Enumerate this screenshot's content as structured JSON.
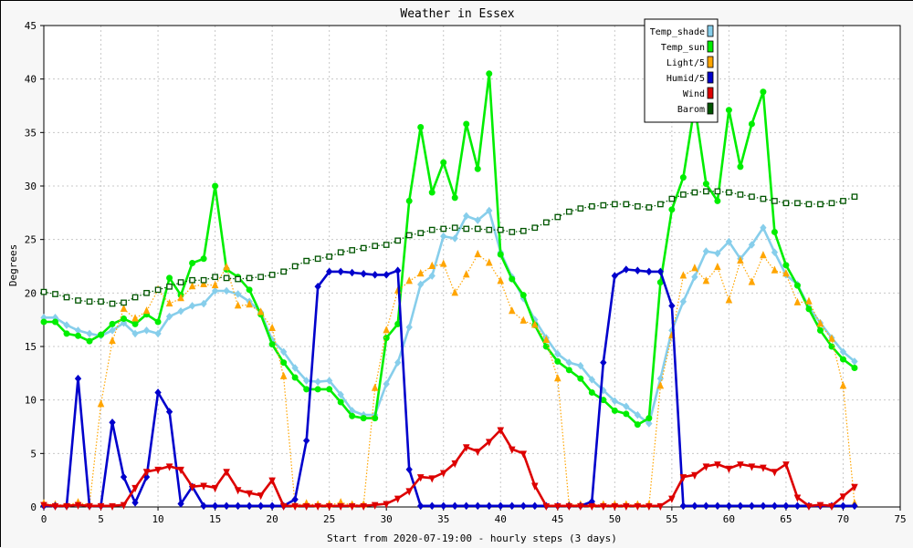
{
  "chart_data": {
    "type": "line",
    "title": "Weather in Essex",
    "xlabel": "Start from 2020-07-19:00 - hourly steps (3 days)",
    "ylabel": "Degrees",
    "xlim": [
      0,
      75
    ],
    "ylim": [
      0,
      45
    ],
    "xticks": [
      0,
      5,
      10,
      15,
      20,
      25,
      30,
      35,
      40,
      45,
      50,
      55,
      60,
      65,
      70,
      75
    ],
    "yticks": [
      0,
      5,
      10,
      15,
      20,
      25,
      30,
      35,
      40,
      45
    ],
    "grid": true,
    "legend_position": "top-right",
    "series": [
      {
        "name": "Temp_shade",
        "color": "#87ceeb",
        "marker": "diamond",
        "style": "solid",
        "values": [
          17.7,
          17.7,
          17.0,
          16.5,
          16.2,
          16.0,
          16.5,
          17.2,
          16.2,
          16.5,
          16.2,
          17.8,
          18.3,
          18.8,
          19.0,
          20.2,
          20.2,
          19.9,
          19.2,
          18.2,
          15.6,
          14.5,
          13.0,
          11.8,
          11.7,
          11.8,
          10.5,
          9.0,
          8.6,
          8.6,
          11.5,
          13.5,
          16.8,
          20.8,
          21.6,
          25.3,
          25.1,
          27.2,
          26.8,
          27.7,
          23.8,
          21.5,
          19.5,
          17.5,
          15.8,
          14.3,
          13.5,
          13.2,
          11.9,
          10.9,
          9.9,
          9.4,
          8.6,
          7.8,
          12.0,
          16.5,
          19.2,
          21.5,
          23.9,
          23.7,
          24.8,
          23.2,
          24.5,
          26.1,
          23.8,
          21.7,
          20.8,
          18.7,
          17.2,
          15.8,
          14.5,
          13.6
        ]
      },
      {
        "name": "Temp_sun",
        "color": "#00ee00",
        "marker": "circle",
        "style": "solid",
        "values": [
          17.3,
          17.3,
          16.2,
          16.0,
          15.5,
          16.1,
          17.1,
          17.6,
          17.1,
          18.0,
          17.3,
          21.4,
          19.8,
          22.8,
          23.2,
          30.0,
          22.2,
          21.5,
          20.3,
          18.0,
          15.2,
          13.5,
          12.1,
          11.0,
          11.0,
          11.0,
          9.8,
          8.5,
          8.3,
          8.3,
          15.8,
          17.1,
          28.6,
          35.5,
          29.4,
          32.2,
          28.9,
          35.8,
          31.6,
          40.5,
          23.6,
          21.3,
          19.8,
          17.0,
          15.0,
          13.6,
          12.8,
          12.0,
          10.7,
          10.0,
          9.0,
          8.7,
          7.7,
          8.3,
          21.0,
          27.8,
          30.8,
          37.5,
          30.2,
          28.6,
          37.1,
          31.8,
          35.8,
          38.8,
          25.7,
          22.6,
          20.7,
          18.5,
          16.5,
          15.0,
          13.8,
          13.0
        ]
      },
      {
        "name": "Light/5",
        "color": "#ffa500",
        "marker": "triangle",
        "style": "dotted",
        "values": [
          0.3,
          0.2,
          0.2,
          0.4,
          0.2,
          9.6,
          15.5,
          18.5,
          17.6,
          18.3,
          20.3,
          19.0,
          19.5,
          20.6,
          20.8,
          20.7,
          22.4,
          18.8,
          18.9,
          18.2,
          16.7,
          12.2,
          0.2,
          0.3,
          0.2,
          0.2,
          0.4,
          0.2,
          0.2,
          11.1,
          16.5,
          20.2,
          21.1,
          21.8,
          22.5,
          22.7,
          20.0,
          21.7,
          23.6,
          22.8,
          21.1,
          18.3,
          17.4,
          17.0,
          15.6,
          12.0,
          0.2,
          0.2,
          0.2,
          0.2,
          0.2,
          0.2,
          0.2,
          0.2,
          11.3,
          16.0,
          21.6,
          22.3,
          21.1,
          22.4,
          19.3,
          23.0,
          21.0,
          23.5,
          22.1,
          21.8,
          19.1,
          19.2,
          17.1,
          15.7,
          11.3,
          0.3
        ]
      },
      {
        "name": "Humid/5",
        "color": "#0000cc",
        "marker": "diamond",
        "style": "solid",
        "values": [
          0.1,
          0.1,
          0.1,
          12.0,
          0.1,
          0.1,
          7.9,
          2.8,
          0.4,
          2.8,
          10.7,
          8.9,
          0.3,
          1.9,
          0.1,
          0.1,
          0.1,
          0.1,
          0.1,
          0.1,
          0.1,
          0.1,
          0.7,
          6.2,
          20.6,
          22.0,
          22.0,
          21.9,
          21.8,
          21.7,
          21.7,
          22.1,
          3.5,
          0.1,
          0.1,
          0.1,
          0.1,
          0.1,
          0.1,
          0.1,
          0.1,
          0.1,
          0.1,
          0.1,
          0.1,
          0.1,
          0.1,
          0.1,
          0.5,
          13.5,
          21.6,
          22.2,
          22.1,
          22.0,
          22.0,
          18.8,
          0.1,
          0.1,
          0.1,
          0.1,
          0.1,
          0.1,
          0.1,
          0.1,
          0.1,
          0.1,
          0.1,
          0.1,
          0.1,
          0.1,
          0.1,
          0.1
        ]
      },
      {
        "name": "Wind",
        "color": "#dd0000",
        "marker": "triangle-down",
        "style": "solid",
        "values": [
          0.2,
          0.1,
          0.1,
          0.2,
          0.1,
          0.1,
          0.1,
          0.2,
          1.8,
          3.3,
          3.5,
          3.8,
          3.5,
          1.9,
          2.0,
          1.8,
          3.3,
          1.6,
          1.3,
          1.1,
          2.5,
          0.1,
          0.1,
          0.1,
          0.1,
          0.1,
          0.1,
          0.1,
          0.1,
          0.2,
          0.3,
          0.8,
          1.5,
          2.8,
          2.7,
          3.2,
          4.1,
          5.6,
          5.2,
          6.1,
          7.2,
          5.4,
          5.0,
          2.0,
          0.1,
          0.1,
          0.1,
          0.1,
          0.1,
          0.1,
          0.1,
          0.1,
          0.1,
          0.1,
          0.1,
          0.8,
          2.8,
          3.0,
          3.8,
          4.0,
          3.6,
          4.0,
          3.8,
          3.7,
          3.3,
          4.0,
          0.9,
          0.1,
          0.2,
          0.1,
          1.0,
          1.9
        ]
      },
      {
        "name": "Barom",
        "color": "#005500",
        "marker": "square",
        "style": "dotted",
        "values": [
          20.1,
          19.9,
          19.6,
          19.3,
          19.2,
          19.2,
          19.0,
          19.1,
          19.6,
          20.0,
          20.3,
          20.6,
          21.0,
          21.2,
          21.2,
          21.5,
          21.4,
          21.3,
          21.4,
          21.5,
          21.7,
          22.0,
          22.5,
          23.0,
          23.2,
          23.4,
          23.8,
          24.0,
          24.2,
          24.4,
          24.5,
          24.9,
          25.4,
          25.6,
          25.9,
          26.0,
          26.1,
          26.0,
          26.0,
          25.9,
          25.9,
          25.7,
          25.8,
          26.1,
          26.6,
          27.1,
          27.6,
          27.9,
          28.1,
          28.2,
          28.3,
          28.3,
          28.1,
          28.0,
          28.3,
          28.8,
          29.2,
          29.4,
          29.5,
          29.5,
          29.4,
          29.2,
          29.0,
          28.8,
          28.6,
          28.4,
          28.4,
          28.3,
          28.3,
          28.4,
          28.6,
          29.0
        ]
      }
    ]
  }
}
